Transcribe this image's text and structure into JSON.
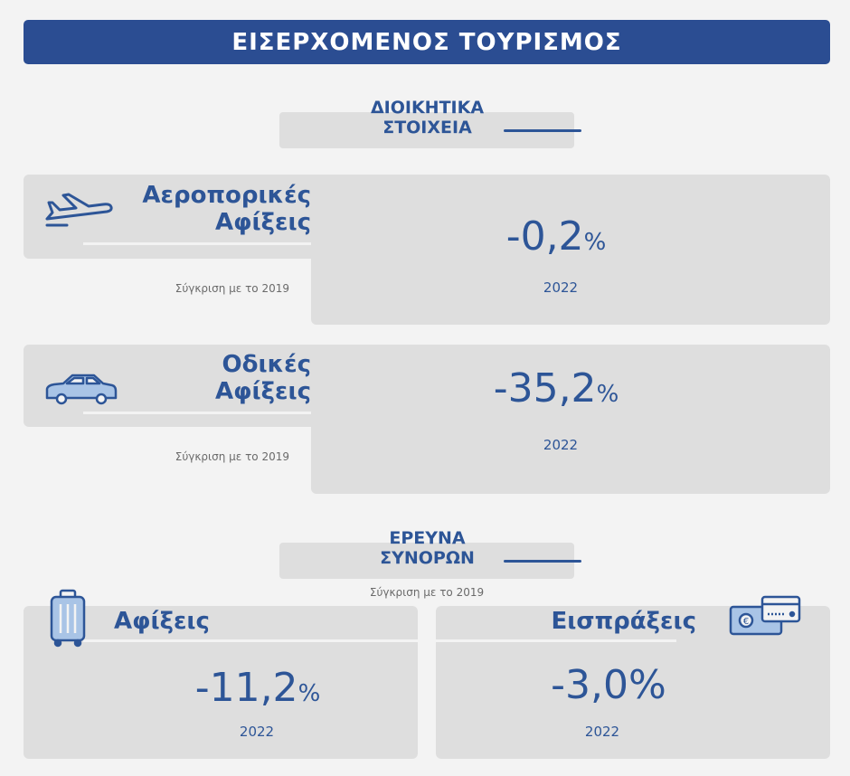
{
  "title": "ΕΙΣΕΡΧΟΜΕΝΟΣ ΤΟΥΡΙΣΜΟΣ",
  "section1": {
    "line1": "ΔΙΟΙΚΗΤΙΚΑ",
    "line2": "ΣΤΟΙΧΕΙΑ"
  },
  "air": {
    "line1": "Αεροπορικές",
    "line2": "Αφίξεις",
    "value": "-0,2",
    "unit": "%",
    "year": "2022",
    "comparison": "Σύγκριση με το 2019",
    "icon": "airplane-icon"
  },
  "road": {
    "line1": "Οδικές",
    "line2": "Αφίξεις",
    "value": "-35,2",
    "unit": "%",
    "year": "2022",
    "comparison": "Σύγκριση με το 2019",
    "icon": "car-icon"
  },
  "section2": {
    "line1": "ΕΡΕΥΝΑ",
    "line2": "ΣΥΝΟΡΩΝ",
    "comparison": "Σύγκριση με το 2019"
  },
  "arrivals": {
    "label": "Αφίξεις",
    "value": "-11,2",
    "unit": "%",
    "year": "2022",
    "icon": "suitcase-icon"
  },
  "receipts": {
    "label": "Εισπράξεις",
    "value": "-3,0%",
    "year": "2022",
    "icon": "cards-icon"
  },
  "colors": {
    "primary": "#2b4d92",
    "text": "#2d5597",
    "panel": "#dedede",
    "background": "#f3f3f3"
  }
}
